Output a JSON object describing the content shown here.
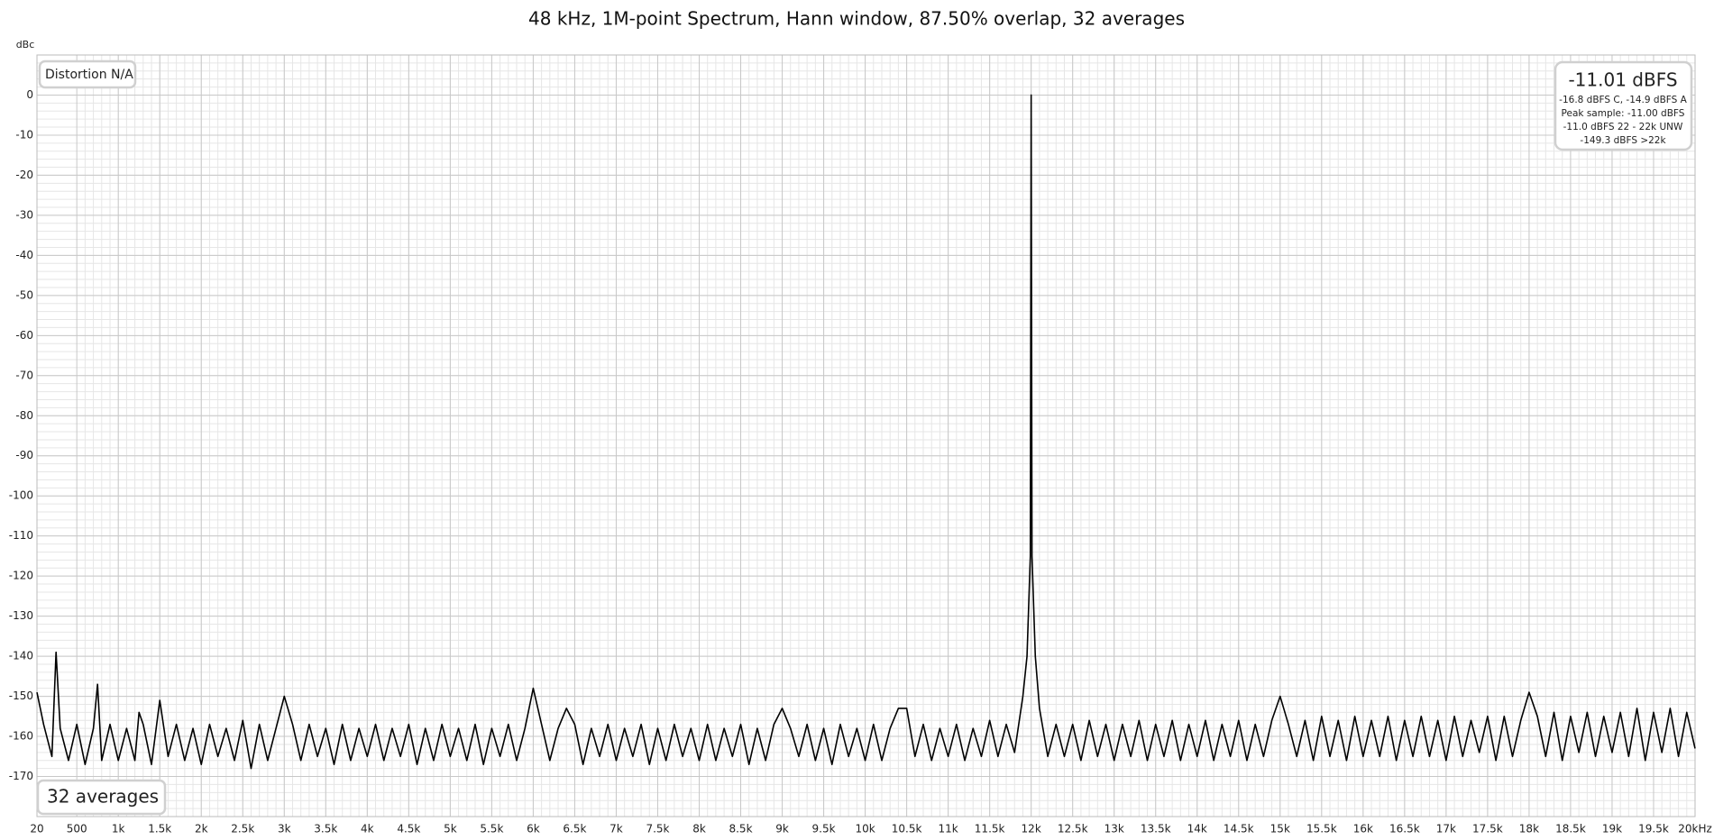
{
  "chart_data": {
    "type": "line",
    "title": "48 kHz, 1M-point Spectrum, Hann window, 87.50% overlap, 32 averages",
    "y_label": "dBc",
    "annotations": {
      "distortion": "Distortion N/A",
      "averages": "32 averages",
      "level": "-11.01 dBFS",
      "level_details": [
        "-16.8 dBFS C, -14.9 dBFS A",
        "Peak sample: -11.00 dBFS",
        "-11.0 dBFS 22 - 22k UNW",
        "-149.3 dBFS >22k"
      ]
    },
    "xlim": [
      20,
      20000
    ],
    "ylim": [
      -180,
      10
    ],
    "grid": true,
    "minor_grid": true,
    "xticks": [
      20,
      500,
      {
        "value": 1000,
        "label": "1k"
      },
      {
        "value": 1500,
        "label": "1.5k"
      },
      {
        "value": 2000,
        "label": "2k"
      },
      {
        "value": 2500,
        "label": "2.5k"
      },
      {
        "value": 3000,
        "label": "3k"
      },
      {
        "value": 3500,
        "label": "3.5k"
      },
      {
        "value": 4000,
        "label": "4k"
      },
      {
        "value": 4500,
        "label": "4.5k"
      },
      {
        "value": 5000,
        "label": "5k"
      },
      {
        "value": 5500,
        "label": "5.5k"
      },
      {
        "value": 6000,
        "label": "6k"
      },
      {
        "value": 6500,
        "label": "6.5k"
      },
      {
        "value": 7000,
        "label": "7k"
      },
      {
        "value": 7500,
        "label": "7.5k"
      },
      {
        "value": 8000,
        "label": "8k"
      },
      {
        "value": 8500,
        "label": "8.5k"
      },
      {
        "value": 9000,
        "label": "9k"
      },
      {
        "value": 9500,
        "label": "9.5k"
      },
      {
        "value": 10000,
        "label": "10k"
      },
      {
        "value": 10500,
        "label": "10.5k"
      },
      {
        "value": 11000,
        "label": "11k"
      },
      {
        "value": 11500,
        "label": "11.5k"
      },
      {
        "value": 12000,
        "label": "12k"
      },
      {
        "value": 12500,
        "label": "12.5k"
      },
      {
        "value": 13000,
        "label": "13k"
      },
      {
        "value": 13500,
        "label": "13.5k"
      },
      {
        "value": 14000,
        "label": "14k"
      },
      {
        "value": 14500,
        "label": "14.5k"
      },
      {
        "value": 15000,
        "label": "15k"
      },
      {
        "value": 15500,
        "label": "15.5k"
      },
      {
        "value": 16000,
        "label": "16k"
      },
      {
        "value": 16500,
        "label": "16.5k"
      },
      {
        "value": 17000,
        "label": "17k"
      },
      {
        "value": 17500,
        "label": "17.5k"
      },
      {
        "value": 18000,
        "label": "18k"
      },
      {
        "value": 18500,
        "label": "18.5k"
      },
      {
        "value": 19000,
        "label": "19k"
      },
      {
        "value": 19500,
        "label": "19.5k"
      },
      {
        "value": 20000,
        "label": "20kHz"
      }
    ],
    "yticks": [
      0,
      -10,
      -20,
      -30,
      -40,
      -50,
      -60,
      -70,
      -80,
      -90,
      -100,
      -110,
      -120,
      -130,
      -140,
      -150,
      -160,
      -170
    ],
    "x": [
      20,
      100,
      200,
      250,
      300,
      400,
      500,
      600,
      700,
      750,
      800,
      900,
      1000,
      1100,
      1200,
      1250,
      1300,
      1400,
      1500,
      1600,
      1700,
      1800,
      1900,
      2000,
      2100,
      2200,
      2300,
      2400,
      2500,
      2600,
      2700,
      2800,
      2900,
      3000,
      3100,
      3200,
      3300,
      3400,
      3500,
      3600,
      3700,
      3800,
      3900,
      4000,
      4100,
      4200,
      4300,
      4400,
      4500,
      4600,
      4700,
      4800,
      4900,
      5000,
      5100,
      5200,
      5300,
      5400,
      5500,
      5600,
      5700,
      5800,
      5900,
      6000,
      6100,
      6200,
      6300,
      6400,
      6500,
      6600,
      6700,
      6800,
      6900,
      7000,
      7100,
      7200,
      7300,
      7400,
      7500,
      7600,
      7700,
      7800,
      7900,
      8000,
      8100,
      8200,
      8300,
      8400,
      8500,
      8600,
      8700,
      8800,
      8900,
      9000,
      9100,
      9200,
      9300,
      9400,
      9500,
      9600,
      9700,
      9800,
      9900,
      10000,
      10100,
      10200,
      10300,
      10400,
      10500,
      10600,
      10700,
      10800,
      10900,
      11000,
      11100,
      11200,
      11300,
      11400,
      11500,
      11600,
      11700,
      11800,
      11900,
      11950,
      11990,
      12000,
      12010,
      12050,
      12100,
      12200,
      12300,
      12400,
      12500,
      12600,
      12700,
      12800,
      12900,
      13000,
      13100,
      13200,
      13300,
      13400,
      13500,
      13600,
      13700,
      13800,
      13900,
      14000,
      14100,
      14200,
      14300,
      14400,
      14500,
      14600,
      14700,
      14800,
      14900,
      15000,
      15100,
      15200,
      15300,
      15400,
      15500,
      15600,
      15700,
      15800,
      15900,
      16000,
      16100,
      16200,
      16300,
      16400,
      16500,
      16600,
      16700,
      16800,
      16900,
      17000,
      17100,
      17200,
      17300,
      17400,
      17500,
      17600,
      17700,
      17800,
      17900,
      18000,
      18100,
      18200,
      18300,
      18400,
      18500,
      18600,
      18700,
      18800,
      18900,
      19000,
      19100,
      19200,
      19300,
      19400,
      19500,
      19600,
      19700,
      19800,
      19900,
      20000
    ],
    "series": [
      {
        "name": "Spectrum",
        "color": "#000000",
        "values": [
          -149,
          -157,
          -165,
          -139,
          -158,
          -166,
          -157,
          -167,
          -158,
          -147,
          -166,
          -157,
          -166,
          -158,
          -166,
          -154,
          -157,
          -167,
          -151,
          -165,
          -157,
          -166,
          -158,
          -167,
          -157,
          -165,
          -158,
          -166,
          -156,
          -168,
          -157,
          -166,
          -158,
          -150,
          -157,
          -166,
          -157,
          -165,
          -158,
          -167,
          -157,
          -166,
          -158,
          -165,
          -157,
          -166,
          -158,
          -165,
          -157,
          -167,
          -158,
          -166,
          -157,
          -165,
          -158,
          -166,
          -157,
          -167,
          -158,
          -165,
          -157,
          -166,
          -158,
          -148,
          -157,
          -166,
          -158,
          -153,
          -157,
          -167,
          -158,
          -165,
          -157,
          -166,
          -158,
          -165,
          -157,
          -167,
          -158,
          -166,
          -157,
          -165,
          -158,
          -166,
          -157,
          -166,
          -158,
          -165,
          -157,
          -167,
          -158,
          -166,
          -157,
          -153,
          -158,
          -165,
          -157,
          -166,
          -158,
          -167,
          -157,
          -165,
          -158,
          -166,
          -157,
          -166,
          -158,
          -153,
          -153,
          -165,
          -157,
          -166,
          -158,
          -165,
          -157,
          -166,
          -158,
          -165,
          -156,
          -165,
          -157,
          -164,
          -150,
          -140,
          -115,
          0,
          -115,
          -140,
          -153,
          -165,
          -157,
          -165,
          -157,
          -166,
          -156,
          -165,
          -157,
          -166,
          -157,
          -165,
          -156,
          -166,
          -157,
          -165,
          -156,
          -166,
          -157,
          -165,
          -156,
          -166,
          -157,
          -165,
          -156,
          -166,
          -157,
          -165,
          -156,
          -150,
          -157,
          -165,
          -156,
          -166,
          -155,
          -165,
          -156,
          -166,
          -155,
          -165,
          -156,
          -165,
          -155,
          -166,
          -156,
          -165,
          -155,
          -165,
          -156,
          -166,
          -155,
          -165,
          -156,
          -164,
          -155,
          -166,
          -155,
          -165,
          -156,
          -149,
          -155,
          -165,
          -154,
          -166,
          -155,
          -164,
          -154,
          -165,
          -155,
          -164,
          -154,
          -165,
          -153,
          -166,
          -154,
          -164,
          -153,
          -165,
          -154,
          -163
        ]
      }
    ]
  }
}
